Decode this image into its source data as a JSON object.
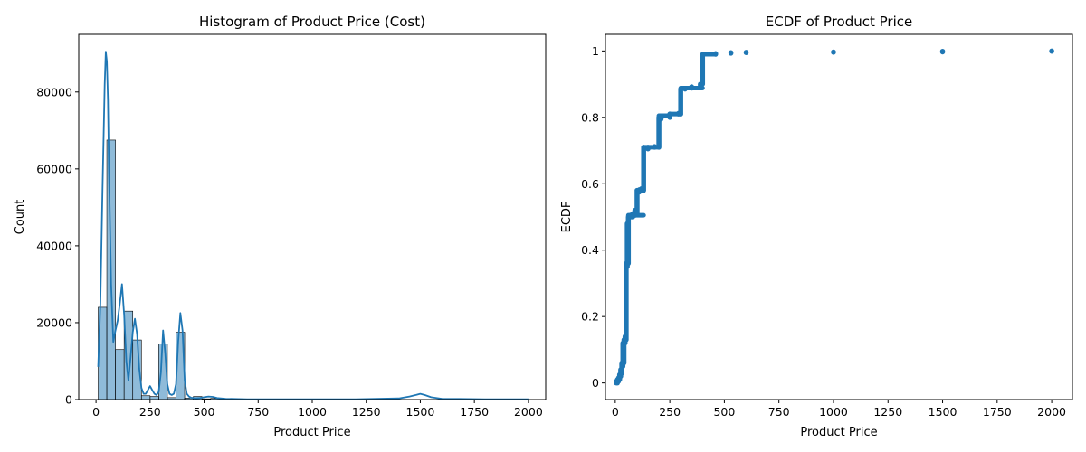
{
  "chart_data": [
    {
      "type": "bar",
      "title": "Histogram of Product Price (Cost)",
      "xlabel": "Product Price",
      "ylabel": "Count",
      "xlim": [
        -80,
        2080
      ],
      "ylim": [
        0,
        95000
      ],
      "xticks": [
        0,
        250,
        500,
        750,
        1000,
        1250,
        1500,
        1750,
        2000
      ],
      "yticks": [
        0,
        20000,
        40000,
        60000,
        80000
      ],
      "bin_edges": [
        10,
        50,
        90,
        130,
        170,
        210,
        250,
        290,
        330,
        370,
        410,
        450,
        490,
        530,
        570
      ],
      "values": [
        24000,
        67500,
        13000,
        23000,
        15500,
        1000,
        800,
        14500,
        500,
        17500,
        400,
        800,
        200,
        300
      ],
      "kde": {
        "x": [
          10,
          20,
          30,
          40,
          45,
          50,
          55,
          60,
          70,
          80,
          90,
          100,
          110,
          120,
          130,
          140,
          150,
          160,
          170,
          180,
          190,
          200,
          210,
          220,
          230,
          240,
          250,
          260,
          270,
          280,
          290,
          300,
          310,
          320,
          330,
          340,
          350,
          360,
          370,
          380,
          390,
          400,
          410,
          420,
          430,
          440,
          460,
          480,
          500,
          520,
          540,
          560,
          600,
          700,
          800,
          1000,
          1200,
          1400,
          1450,
          1480,
          1500,
          1520,
          1550,
          1600,
          1800,
          2000
        ],
        "y": [
          8500,
          25000,
          55000,
          82000,
          90500,
          88000,
          78000,
          60000,
          30000,
          15000,
          18000,
          20500,
          25000,
          30000,
          22000,
          10000,
          5000,
          11000,
          17500,
          21000,
          17000,
          8000,
          3000,
          1500,
          1500,
          2500,
          3500,
          2500,
          1500,
          1200,
          2000,
          7000,
          18000,
          12000,
          4000,
          1500,
          1200,
          1500,
          4000,
          15000,
          22500,
          18000,
          5000,
          1500,
          800,
          500,
          300,
          400,
          600,
          800,
          700,
          400,
          200,
          100,
          100,
          100,
          100,
          300,
          800,
          1200,
          1500,
          1200,
          600,
          200,
          100,
          100
        ]
      }
    },
    {
      "type": "scatter",
      "title": "ECDF of Product Price",
      "xlabel": "Product Price",
      "ylabel": "ECDF",
      "xlim": [
        -45,
        2095
      ],
      "ylim": [
        -0.05,
        1.05
      ],
      "xticks": [
        0,
        250,
        500,
        750,
        1000,
        1250,
        1500,
        1750,
        2000
      ],
      "yticks": [
        0.0,
        0.2,
        0.4,
        0.6,
        0.8,
        1.0
      ],
      "vsegments": [
        [
          5,
          0.0,
          0.005
        ],
        [
          10,
          0.0,
          0.01
        ],
        [
          15,
          0.005,
          0.015
        ],
        [
          20,
          0.01,
          0.025
        ],
        [
          25,
          0.02,
          0.04
        ],
        [
          30,
          0.03,
          0.06
        ],
        [
          35,
          0.05,
          0.12
        ],
        [
          40,
          0.06,
          0.13
        ],
        [
          45,
          0.12,
          0.14
        ],
        [
          50,
          0.13,
          0.36
        ],
        [
          55,
          0.35,
          0.48
        ],
        [
          60,
          0.36,
          0.5
        ],
        [
          70,
          0.5,
          0.505
        ],
        [
          80,
          0.5,
          0.51
        ],
        [
          90,
          0.505,
          0.52
        ],
        [
          100,
          0.51,
          0.58
        ],
        [
          110,
          0.575,
          0.582
        ],
        [
          120,
          0.58,
          0.585
        ],
        [
          130,
          0.58,
          0.71
        ],
        [
          150,
          0.705,
          0.71
        ],
        [
          180,
          0.71,
          0.712
        ],
        [
          200,
          0.71,
          0.8
        ],
        [
          210,
          0.795,
          0.802
        ],
        [
          250,
          0.8,
          0.81
        ],
        [
          290,
          0.81,
          0.812
        ],
        [
          300,
          0.81,
          0.885
        ],
        [
          320,
          0.885,
          0.887
        ],
        [
          350,
          0.888,
          0.892
        ],
        [
          390,
          0.89,
          0.9
        ],
        [
          400,
          0.9,
          0.985
        ],
        [
          460,
          0.99,
          0.992
        ],
        [
          530,
          0.993,
          0.995
        ],
        [
          600,
          0.995,
          0.996
        ],
        [
          1000,
          0.996,
          0.997
        ],
        [
          1500,
          0.997,
          0.999
        ],
        [
          2000,
          0.999,
          1.0
        ]
      ],
      "hsegments": [
        [
          60,
          130,
          0.505
        ],
        [
          100,
          120,
          0.58
        ],
        [
          130,
          200,
          0.71
        ],
        [
          200,
          250,
          0.805
        ],
        [
          250,
          300,
          0.81
        ],
        [
          300,
          400,
          0.888
        ],
        [
          400,
          460,
          0.99
        ]
      ]
    }
  ]
}
